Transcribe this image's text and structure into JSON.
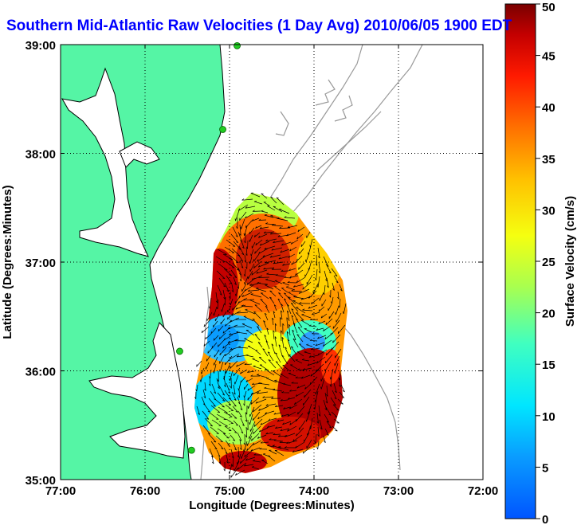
{
  "title": "Southern Mid-Atlantic Raw Velocities (1 Day Avg) 2010/06/05 1900 EDT",
  "map": {
    "xlabel": "Longitude (Degrees:Minutes)",
    "ylabel": "Latitude (Degrees:Minutes)",
    "lon_range": [
      -77,
      -72
    ],
    "lat_range": [
      35,
      39
    ],
    "x_ticks": [
      {
        "value": -77,
        "label": "77:00"
      },
      {
        "value": -76,
        "label": "76:00"
      },
      {
        "value": -75,
        "label": "75:00"
      },
      {
        "value": -74,
        "label": "74:00"
      },
      {
        "value": -73,
        "label": "73:00"
      },
      {
        "value": -72,
        "label": "72:00"
      }
    ],
    "y_ticks": [
      {
        "value": 35,
        "label": "35:00"
      },
      {
        "value": 36,
        "label": "36:00"
      },
      {
        "value": 37,
        "label": "37:00"
      },
      {
        "value": 38,
        "label": "38:00"
      },
      {
        "value": 39,
        "label": "39:00"
      }
    ],
    "grid": "dotted",
    "land_color": "#55f5a5",
    "contour_color": "#999999",
    "station_color": "#22cc22",
    "stations": [
      {
        "lon": -74.91,
        "lat": 38.99
      },
      {
        "lon": -75.08,
        "lat": 38.22
      },
      {
        "lon": -75.59,
        "lat": 36.18
      },
      {
        "lon": -75.45,
        "lat": 35.27
      }
    ],
    "colorbar": {
      "label": "Surface Velocity (cm/s)",
      "min": 0,
      "max": 50,
      "ticks": [
        {
          "value": 0,
          "label": "0"
        },
        {
          "value": 5,
          "label": "5"
        },
        {
          "value": 10,
          "label": "10"
        },
        {
          "value": 15,
          "label": "15"
        },
        {
          "value": 20,
          "label": "20"
        },
        {
          "value": 25,
          "label": "25"
        },
        {
          "value": 30,
          "label": "30"
        },
        {
          "value": 35,
          "label": "35"
        },
        {
          "value": 40,
          "label": "40"
        },
        {
          "value": 45,
          "label": "45"
        },
        {
          "value": 50,
          "label": "50"
        }
      ]
    }
  }
}
